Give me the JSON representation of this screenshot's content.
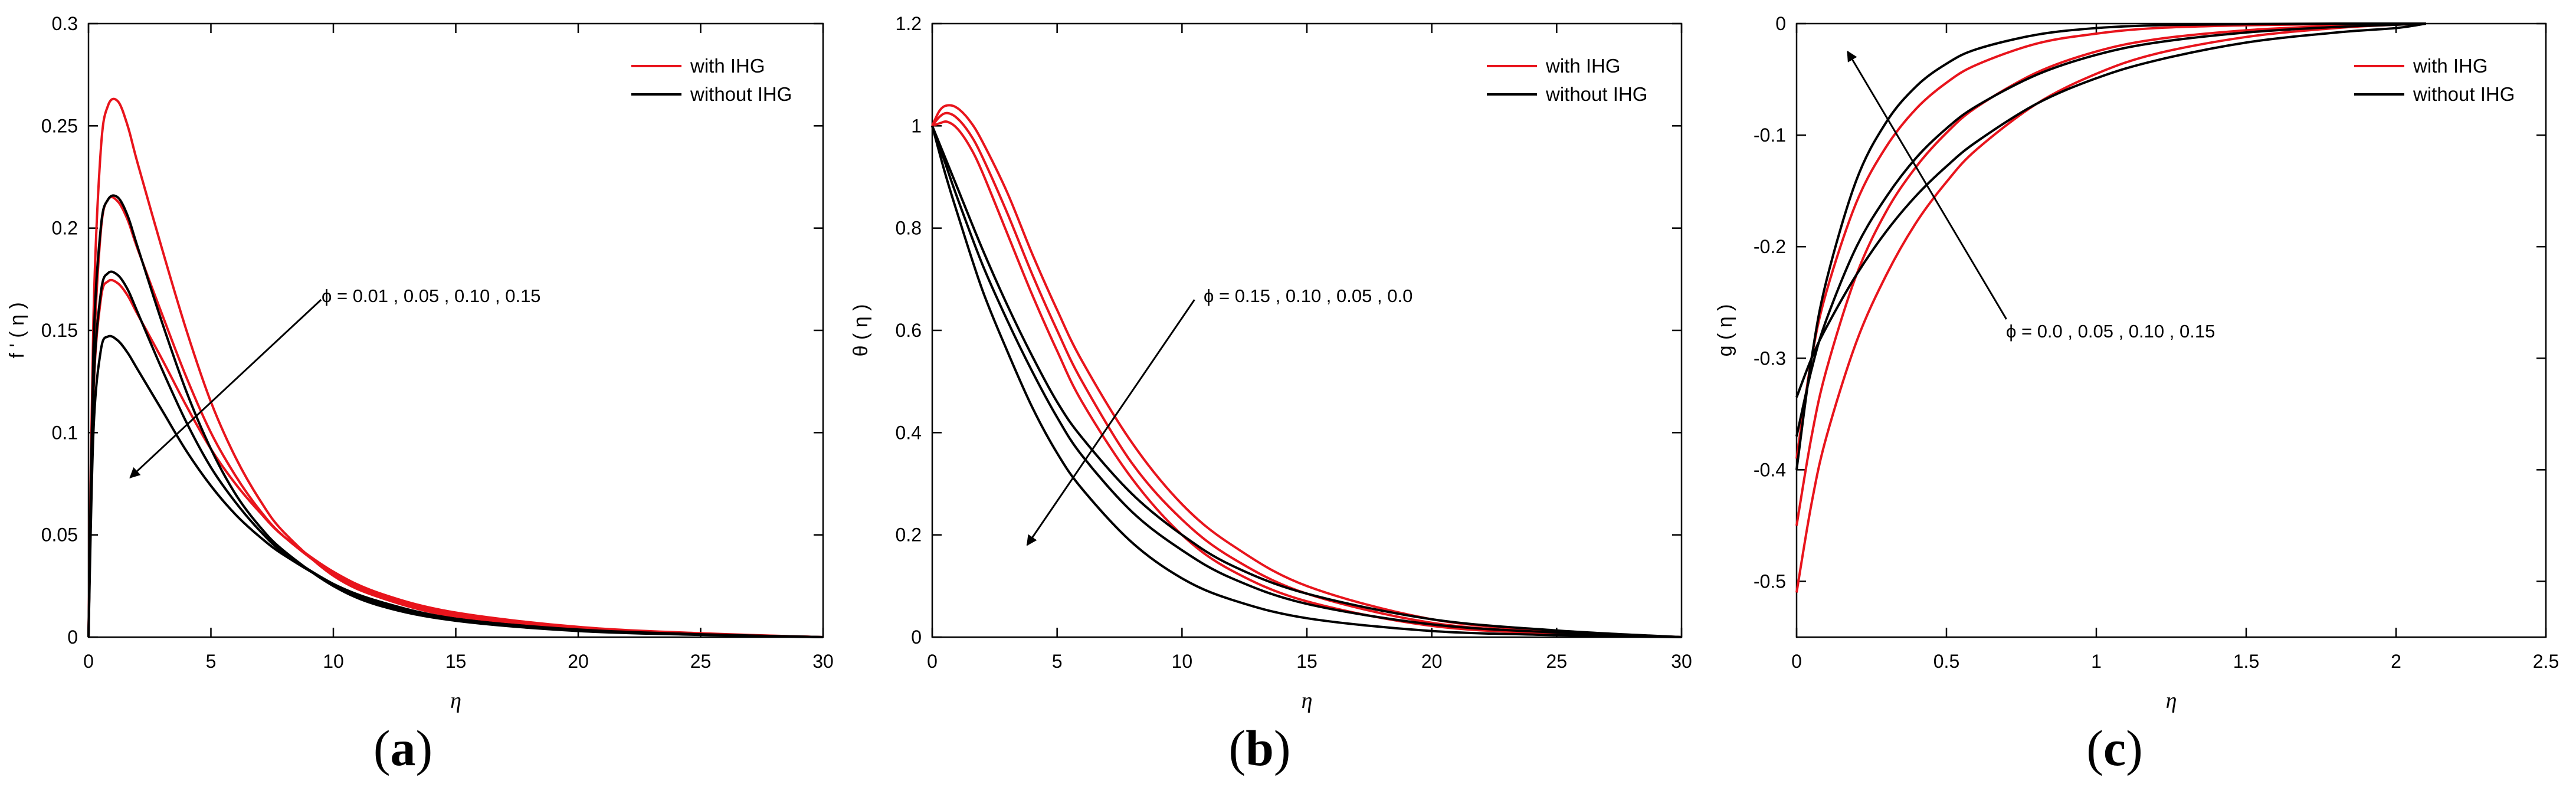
{
  "colors": {
    "with": "#e8141c",
    "without": "#000000",
    "axis": "#000000"
  },
  "chart_data": [
    {
      "type": "line",
      "panel_label": "a",
      "title": "",
      "xlabel": "η",
      "ylabel": "f ' ( η )",
      "xlim": [
        0,
        30
      ],
      "ylim": [
        0,
        0.3
      ],
      "xticks": [
        0,
        5,
        10,
        15,
        20,
        25,
        30
      ],
      "yticks": [
        0,
        0.05,
        0.1,
        0.15,
        0.2,
        0.25,
        0.3
      ],
      "xtick_labels": [
        "0",
        "5",
        "10",
        "15",
        "20",
        "25",
        "30"
      ],
      "ytick_labels": [
        "0",
        "0.05",
        "0.1",
        "0.15",
        "0.2",
        "0.25",
        "0.3"
      ],
      "legend": {
        "position": "top-right",
        "entries": [
          "with IHG",
          "without IHG"
        ]
      },
      "annotation": {
        "text": "ϕ = 0.01 , 0.05 , 0.10 , 0.15",
        "arrow_from": [
          9.5,
          0.165
        ],
        "arrow_to": [
          1.7,
          0.078
        ]
      },
      "series": [
        {
          "name": "with IHG, ϕ = 0.01",
          "group": "with",
          "x": [
            0,
            0.2,
            0.5,
            0.8,
            1.2,
            1.6,
            2,
            3,
            4,
            5,
            6,
            7,
            8,
            10,
            12,
            15,
            20,
            25,
            30
          ],
          "y": [
            0,
            0.155,
            0.238,
            0.26,
            0.262,
            0.25,
            0.232,
            0.19,
            0.15,
            0.115,
            0.088,
            0.067,
            0.051,
            0.03,
            0.019,
            0.01,
            0.004,
            0.0015,
            0
          ]
        },
        {
          "name": "with IHG, ϕ = 0.05",
          "group": "with",
          "x": [
            0,
            0.2,
            0.5,
            0.8,
            1.2,
            1.6,
            2,
            3,
            4,
            5,
            6,
            7,
            8,
            10,
            12,
            15,
            20,
            25,
            30
          ],
          "y": [
            0,
            0.13,
            0.198,
            0.214,
            0.213,
            0.204,
            0.19,
            0.158,
            0.127,
            0.1,
            0.079,
            0.062,
            0.049,
            0.031,
            0.02,
            0.011,
            0.0045,
            0.0017,
            0
          ]
        },
        {
          "name": "with IHG, ϕ = 0.10",
          "group": "with",
          "x": [
            0,
            0.2,
            0.5,
            0.8,
            1.2,
            1.6,
            2,
            3,
            4,
            5,
            6,
            7,
            8,
            10,
            12,
            15,
            20,
            25,
            30
          ],
          "y": [
            0,
            0.118,
            0.165,
            0.174,
            0.173,
            0.167,
            0.158,
            0.136,
            0.113,
            0.092,
            0.075,
            0.061,
            0.049,
            0.032,
            0.021,
            0.012,
            0.005,
            0.0019,
            0
          ]
        },
        {
          "name": "without IHG, ϕ = 0.01",
          "group": "without",
          "x": [
            0,
            0.2,
            0.5,
            0.8,
            1.2,
            1.6,
            2,
            3,
            4,
            5,
            6,
            7,
            8,
            10,
            12,
            15,
            20,
            25,
            30
          ],
          "y": [
            0,
            0.14,
            0.2,
            0.214,
            0.215,
            0.206,
            0.191,
            0.154,
            0.12,
            0.092,
            0.07,
            0.054,
            0.042,
            0.025,
            0.015,
            0.008,
            0.003,
            0.0011,
            0
          ]
        },
        {
          "name": "without IHG, ϕ = 0.05",
          "group": "without",
          "x": [
            0,
            0.2,
            0.5,
            0.8,
            1.2,
            1.6,
            2,
            3,
            4,
            5,
            6,
            7,
            8,
            10,
            12,
            15,
            20,
            25,
            30
          ],
          "y": [
            0,
            0.12,
            0.168,
            0.178,
            0.177,
            0.17,
            0.159,
            0.131,
            0.105,
            0.083,
            0.066,
            0.052,
            0.041,
            0.026,
            0.016,
            0.009,
            0.0035,
            0.0013,
            0
          ]
        },
        {
          "name": "without IHG, ϕ = 0.10",
          "group": "without",
          "x": [
            0,
            0.2,
            0.5,
            0.8,
            1.2,
            1.6,
            2,
            3,
            4,
            5,
            6,
            7,
            8,
            10,
            12,
            15,
            20,
            25,
            30
          ],
          "y": [
            0,
            0.1,
            0.14,
            0.147,
            0.145,
            0.139,
            0.131,
            0.111,
            0.091,
            0.074,
            0.06,
            0.049,
            0.04,
            0.026,
            0.017,
            0.009,
            0.0037,
            0.0014,
            0
          ]
        }
      ]
    },
    {
      "type": "line",
      "panel_label": "b",
      "title": "",
      "xlabel": "η",
      "ylabel": "θ ( η )",
      "xlim": [
        0,
        30
      ],
      "ylim": [
        0,
        1.2
      ],
      "xticks": [
        0,
        5,
        10,
        15,
        20,
        25,
        30
      ],
      "yticks": [
        0,
        0.2,
        0.4,
        0.6,
        0.8,
        1,
        1.2
      ],
      "xtick_labels": [
        "0",
        "5",
        "10",
        "15",
        "20",
        "25",
        "30"
      ],
      "ytick_labels": [
        "0",
        "0.2",
        "0.4",
        "0.6",
        "0.8",
        "1",
        "1.2"
      ],
      "legend": {
        "position": "top-right",
        "entries": [
          "with IHG",
          "without IHG"
        ]
      },
      "annotation": {
        "text": "ϕ = 0.15 , 0.10 , 0.05 , 0.0",
        "arrow_from": [
          10.5,
          0.66
        ],
        "arrow_to": [
          3.8,
          0.18
        ]
      },
      "series": [
        {
          "name": "with IHG, ϕ = 0.15",
          "group": "with",
          "x": [
            0,
            0.3,
            0.6,
            1,
            1.5,
            2,
            3,
            4,
            5,
            6,
            8,
            10,
            12,
            15,
            20,
            25,
            30
          ],
          "y": [
            1,
            1.03,
            1.04,
            1.035,
            1.01,
            0.97,
            0.87,
            0.75,
            0.64,
            0.54,
            0.38,
            0.26,
            0.18,
            0.1,
            0.035,
            0.012,
            0
          ]
        },
        {
          "name": "with IHG, ϕ = 0.10",
          "group": "with",
          "x": [
            0,
            0.3,
            0.6,
            1,
            1.5,
            2,
            3,
            4,
            5,
            6,
            8,
            10,
            12,
            15,
            20,
            25,
            30
          ],
          "y": [
            1,
            1.018,
            1.025,
            1.015,
            0.985,
            0.94,
            0.83,
            0.71,
            0.6,
            0.5,
            0.34,
            0.23,
            0.155,
            0.085,
            0.028,
            0.009,
            0
          ]
        },
        {
          "name": "with IHG, ϕ = 0.05",
          "group": "with",
          "x": [
            0,
            0.3,
            0.6,
            1,
            1.5,
            2,
            3,
            4,
            5,
            6,
            8,
            10,
            12,
            15,
            20,
            25,
            30
          ],
          "y": [
            1,
            1.005,
            1.008,
            0.995,
            0.96,
            0.91,
            0.79,
            0.67,
            0.56,
            0.46,
            0.31,
            0.2,
            0.13,
            0.07,
            0.022,
            0.007,
            0
          ]
        },
        {
          "name": "without IHG, ϕ = 0.15",
          "group": "without",
          "x": [
            0,
            0.5,
            1,
            2,
            3,
            4,
            5,
            6,
            8,
            10,
            12,
            15,
            20,
            25,
            30
          ],
          "y": [
            1,
            0.94,
            0.88,
            0.76,
            0.65,
            0.55,
            0.46,
            0.39,
            0.28,
            0.2,
            0.14,
            0.085,
            0.035,
            0.013,
            0
          ]
        },
        {
          "name": "without IHG, ϕ = 0.10",
          "group": "without",
          "x": [
            0,
            0.5,
            1,
            2,
            3,
            4,
            5,
            6,
            8,
            10,
            12,
            15,
            20,
            25,
            30
          ],
          "y": [
            1,
            0.93,
            0.86,
            0.73,
            0.62,
            0.52,
            0.43,
            0.355,
            0.245,
            0.17,
            0.115,
            0.065,
            0.025,
            0.009,
            0
          ]
        },
        {
          "name": "without IHG, ϕ = 0.0",
          "group": "without",
          "x": [
            0,
            0.5,
            1,
            2,
            3,
            4,
            5,
            6,
            8,
            10,
            12,
            15,
            20,
            25,
            30
          ],
          "y": [
            1,
            0.91,
            0.83,
            0.68,
            0.56,
            0.45,
            0.36,
            0.29,
            0.185,
            0.115,
            0.073,
            0.037,
            0.012,
            0.004,
            0
          ]
        }
      ]
    },
    {
      "type": "line",
      "panel_label": "c",
      "title": "",
      "xlabel": "η",
      "ylabel": "g ( η )",
      "xlim": [
        0,
        2.5
      ],
      "ylim": [
        -0.55,
        0
      ],
      "xticks": [
        0,
        0.5,
        1,
        1.5,
        2,
        2.5
      ],
      "yticks": [
        0,
        -0.1,
        -0.2,
        -0.3,
        -0.4,
        -0.5
      ],
      "xtick_labels": [
        "0",
        "0.5",
        "1",
        "1.5",
        "2",
        "2.5"
      ],
      "ytick_labels": [
        "0",
        "-0.1",
        "-0.2",
        "-0.3",
        "-0.4",
        "-0.5"
      ],
      "legend": {
        "position": "top-right",
        "entries": [
          "with IHG",
          "without IHG"
        ]
      },
      "annotation": {
        "text": "ϕ = 0.0 , 0.05 , 0.10 , 0.15",
        "arrow_from": [
          0.7,
          -0.265
        ],
        "arrow_to": [
          0.17,
          -0.025
        ]
      },
      "series": [
        {
          "name": "with IHG, ϕ = 0.15",
          "group": "with",
          "x": [
            0,
            0.05,
            0.1,
            0.2,
            0.3,
            0.4,
            0.5,
            0.6,
            0.8,
            1,
            1.2,
            1.5,
            1.8,
            2,
            2.1
          ],
          "y": [
            -0.51,
            -0.43,
            -0.37,
            -0.285,
            -0.225,
            -0.178,
            -0.142,
            -0.113,
            -0.072,
            -0.045,
            -0.027,
            -0.012,
            -0.004,
            -0.001,
            0
          ]
        },
        {
          "name": "with IHG, ϕ = 0.10",
          "group": "with",
          "x": [
            0,
            0.05,
            0.1,
            0.2,
            0.3,
            0.4,
            0.5,
            0.6,
            0.8,
            1,
            1.2,
            1.5,
            1.8,
            2,
            2.1
          ],
          "y": [
            -0.45,
            -0.37,
            -0.31,
            -0.225,
            -0.168,
            -0.128,
            -0.098,
            -0.075,
            -0.044,
            -0.025,
            -0.014,
            -0.006,
            -0.002,
            -0.0005,
            0
          ]
        },
        {
          "name": "with IHG, ϕ = 0.05",
          "group": "with",
          "x": [
            0,
            0.05,
            0.1,
            0.2,
            0.3,
            0.4,
            0.5,
            0.6,
            0.8,
            1,
            1.2,
            1.5,
            1.8,
            2,
            2.1
          ],
          "y": [
            -0.39,
            -0.3,
            -0.24,
            -0.16,
            -0.11,
            -0.076,
            -0.053,
            -0.037,
            -0.018,
            -0.009,
            -0.004,
            -0.0015,
            -0.0005,
            0,
            0
          ]
        },
        {
          "name": "without IHG, ϕ = 0.0",
          "group": "without",
          "x": [
            0,
            0.05,
            0.1,
            0.2,
            0.3,
            0.4,
            0.5,
            0.6,
            0.8,
            1,
            1.2,
            1.5,
            1.8,
            2,
            2.1
          ],
          "y": [
            -0.4,
            -0.3,
            -0.23,
            -0.14,
            -0.088,
            -0.056,
            -0.036,
            -0.023,
            -0.01,
            -0.004,
            -0.0015,
            -0.0005,
            0,
            0,
            0
          ]
        },
        {
          "name": "without IHG, ϕ = 0.05",
          "group": "without",
          "x": [
            0,
            0.05,
            0.1,
            0.2,
            0.3,
            0.4,
            0.5,
            0.6,
            0.8,
            1,
            1.2,
            1.5,
            1.8,
            2,
            2.1
          ],
          "y": [
            -0.37,
            -0.31,
            -0.265,
            -0.2,
            -0.155,
            -0.12,
            -0.094,
            -0.074,
            -0.046,
            -0.028,
            -0.017,
            -0.008,
            -0.003,
            -0.001,
            0
          ]
        },
        {
          "name": "without IHG, ϕ = 0.10",
          "group": "without",
          "x": [
            0,
            0.05,
            0.1,
            0.2,
            0.3,
            0.4,
            0.5,
            0.6,
            0.8,
            1,
            1.2,
            1.5,
            1.8,
            2,
            2.1
          ],
          "y": [
            -0.335,
            -0.3,
            -0.272,
            -0.225,
            -0.186,
            -0.154,
            -0.128,
            -0.106,
            -0.072,
            -0.049,
            -0.033,
            -0.017,
            -0.008,
            -0.004,
            0
          ]
        }
      ]
    }
  ]
}
